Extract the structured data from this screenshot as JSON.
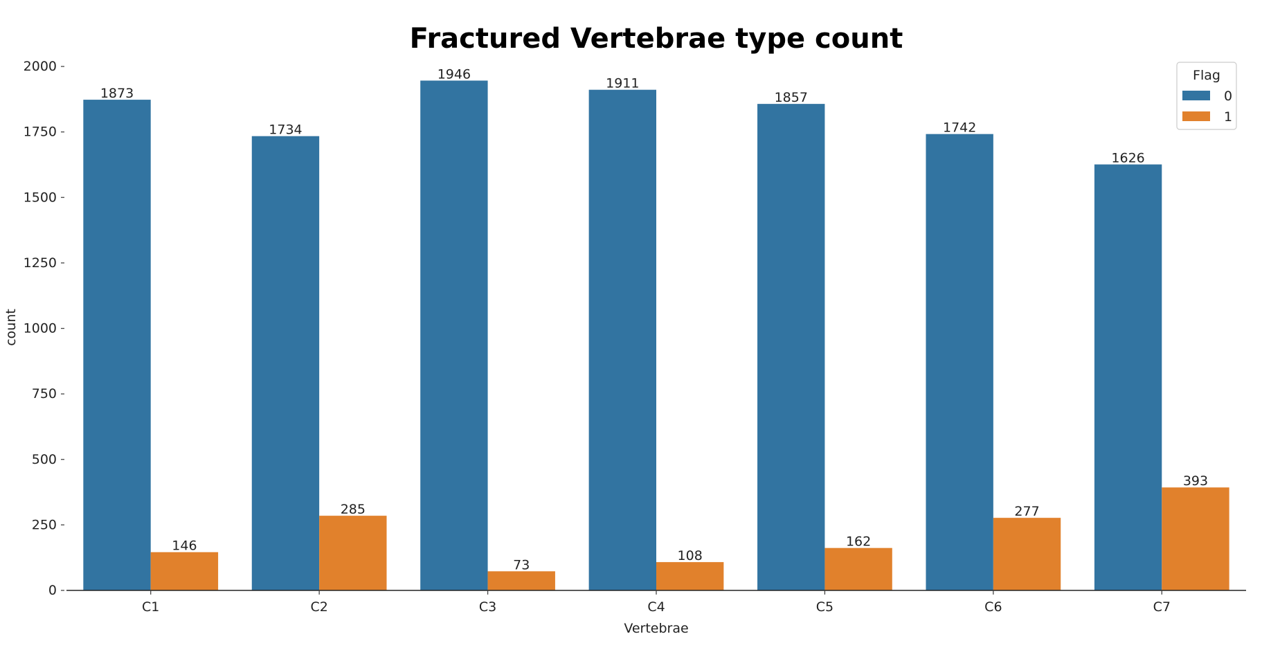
{
  "chart_data": {
    "type": "bar",
    "title": "Fractured Vertebrae type count",
    "xlabel": "Vertebrae",
    "ylabel": "count",
    "categories": [
      "C1",
      "C2",
      "C3",
      "C4",
      "C5",
      "C6",
      "C7"
    ],
    "series": [
      {
        "name": "0",
        "values": [
          1873,
          1734,
          1946,
          1911,
          1857,
          1742,
          1626
        ],
        "color": "#3274a1"
      },
      {
        "name": "1",
        "values": [
          146,
          285,
          73,
          108,
          162,
          277,
          393
        ],
        "color": "#e1812c"
      }
    ],
    "ylim": [
      0,
      2000
    ],
    "yticks": [
      0,
      250,
      500,
      750,
      1000,
      1250,
      1500,
      1750,
      2000
    ],
    "grid": false,
    "legend": {
      "title": "Flag",
      "placement": "top-right"
    },
    "data_labels": true
  }
}
